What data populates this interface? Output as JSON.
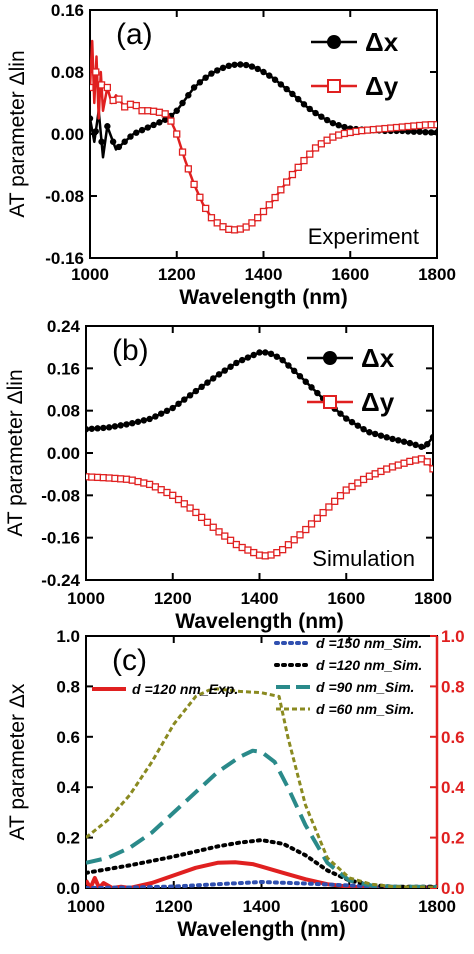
{
  "chart_data": [
    {
      "id": "a",
      "type": "line",
      "panel_label": "(a)",
      "annotation": "Experiment",
      "xlabel": "Wavelength (nm)",
      "ylabel": "AT parameter Δlin",
      "xlim": [
        1000,
        1800
      ],
      "ylim": [
        -0.16,
        0.16
      ],
      "xticks": [
        1000,
        1200,
        1400,
        1600,
        1800
      ],
      "yticks": [
        -0.16,
        -0.08,
        0.0,
        0.08,
        0.16
      ],
      "ytick_labels": [
        "-0.16",
        "-0.08",
        "0.00",
        "0.08",
        "0.16"
      ],
      "legend": "top-right",
      "series": [
        {
          "name": "Δx",
          "color": "#000000",
          "marker": "circle",
          "x": [
            1000,
            1010,
            1020,
            1030,
            1040,
            1060,
            1080,
            1100,
            1120,
            1140,
            1160,
            1180,
            1200,
            1220,
            1240,
            1260,
            1280,
            1300,
            1320,
            1340,
            1360,
            1380,
            1400,
            1420,
            1440,
            1460,
            1480,
            1500,
            1520,
            1540,
            1560,
            1580,
            1600,
            1620,
            1640,
            1660,
            1680,
            1700,
            1720,
            1740,
            1760,
            1780,
            1800
          ],
          "y": [
            0.02,
            -0.01,
            0.03,
            -0.03,
            0.01,
            -0.02,
            -0.01,
            0.0,
            0.005,
            0.01,
            0.015,
            0.02,
            0.03,
            0.045,
            0.06,
            0.07,
            0.078,
            0.084,
            0.088,
            0.09,
            0.089,
            0.086,
            0.08,
            0.073,
            0.064,
            0.055,
            0.045,
            0.035,
            0.027,
            0.02,
            0.014,
            0.01,
            0.007,
            0.006,
            0.005,
            0.005,
            0.004,
            0.004,
            0.004,
            0.003,
            0.003,
            0.002,
            0.002
          ]
        },
        {
          "name": "Δy",
          "color": "#e02020",
          "marker": "square",
          "x": [
            1000,
            1005,
            1010,
            1015,
            1020,
            1025,
            1030,
            1040,
            1050,
            1060,
            1080,
            1100,
            1120,
            1140,
            1160,
            1180,
            1200,
            1220,
            1240,
            1260,
            1280,
            1300,
            1320,
            1340,
            1360,
            1380,
            1400,
            1420,
            1440,
            1460,
            1480,
            1500,
            1520,
            1540,
            1560,
            1580,
            1600,
            1620,
            1640,
            1660,
            1680,
            1700,
            1720,
            1740,
            1760,
            1780,
            1800
          ],
          "y": [
            0.06,
            0.12,
            0.04,
            0.1,
            0.02,
            0.08,
            0.03,
            0.06,
            0.04,
            0.05,
            0.035,
            0.04,
            0.03,
            0.03,
            0.028,
            0.025,
            0.0,
            -0.035,
            -0.065,
            -0.09,
            -0.108,
            -0.118,
            -0.123,
            -0.124,
            -0.12,
            -0.112,
            -0.1,
            -0.087,
            -0.072,
            -0.057,
            -0.043,
            -0.03,
            -0.018,
            -0.01,
            -0.004,
            0.0,
            0.002,
            0.004,
            0.005,
            0.006,
            0.007,
            0.008,
            0.009,
            0.01,
            0.011,
            0.012,
            0.012
          ]
        }
      ]
    },
    {
      "id": "b",
      "type": "line",
      "panel_label": "(b)",
      "annotation": "Simulation",
      "xlabel": "Wavelength (nm)",
      "ylabel": "AT parameter Δlin",
      "xlim": [
        1000,
        1800
      ],
      "ylim": [
        -0.24,
        0.24
      ],
      "xticks": [
        1000,
        1200,
        1400,
        1600,
        1800
      ],
      "yticks": [
        -0.24,
        -0.16,
        -0.08,
        0.0,
        0.08,
        0.16,
        0.24
      ],
      "ytick_labels": [
        "-0.24",
        "-0.16",
        "-0.08",
        "0.00",
        "0.08",
        "0.16",
        "0.24"
      ],
      "legend": "top-right",
      "series": [
        {
          "name": "Δx",
          "color": "#000000",
          "marker": "circle",
          "x": [
            1000,
            1050,
            1100,
            1150,
            1200,
            1250,
            1300,
            1350,
            1400,
            1420,
            1450,
            1500,
            1550,
            1600,
            1650,
            1700,
            1750,
            1780,
            1800
          ],
          "y": [
            0.045,
            0.048,
            0.055,
            0.065,
            0.085,
            0.115,
            0.145,
            0.172,
            0.19,
            0.19,
            0.178,
            0.14,
            0.1,
            0.065,
            0.04,
            0.028,
            0.018,
            0.01,
            0.03
          ]
        },
        {
          "name": "Δy",
          "color": "#e02020",
          "marker": "square",
          "x": [
            1000,
            1050,
            1100,
            1150,
            1200,
            1250,
            1300,
            1350,
            1400,
            1420,
            1450,
            1500,
            1550,
            1600,
            1650,
            1700,
            1750,
            1780,
            1800
          ],
          "y": [
            -0.045,
            -0.047,
            -0.05,
            -0.06,
            -0.08,
            -0.11,
            -0.145,
            -0.175,
            -0.193,
            -0.195,
            -0.185,
            -0.15,
            -0.11,
            -0.07,
            -0.045,
            -0.028,
            -0.015,
            -0.01,
            -0.03
          ]
        }
      ]
    },
    {
      "id": "c",
      "type": "line",
      "panel_label": "(c)",
      "xlabel": "Wavelength (nm)",
      "ylabel": "AT parameter Δx",
      "xlim": [
        1000,
        1800
      ],
      "ylim": [
        0.0,
        1.0
      ],
      "y2lim": [
        0.0,
        1.0
      ],
      "xticks": [
        1000,
        1200,
        1400,
        1600,
        1800
      ],
      "yticks": [
        0.0,
        0.2,
        0.4,
        0.6,
        0.8,
        1.0
      ],
      "ytick_labels": [
        "0.0",
        "0.2",
        "0.4",
        "0.6",
        "0.8",
        "1.0"
      ],
      "legend": "top",
      "series": [
        {
          "name": "d =120 nm_Exp.",
          "color": "#e02020",
          "style": "solid",
          "x": [
            1000,
            1010,
            1020,
            1030,
            1040,
            1060,
            1080,
            1100,
            1150,
            1200,
            1250,
            1300,
            1340,
            1380,
            1400,
            1450,
            1500,
            1550,
            1600,
            1650,
            1700,
            1750,
            1800
          ],
          "y": [
            0.03,
            0.0,
            0.04,
            0.0,
            0.02,
            0.0,
            0.005,
            0.0,
            0.02,
            0.05,
            0.08,
            0.1,
            0.102,
            0.095,
            0.085,
            0.06,
            0.035,
            0.015,
            0.005,
            0.002,
            0.002,
            0.002,
            0.003
          ]
        },
        {
          "name": "d =150 nm_Sim.",
          "color": "#3050b0",
          "style": "dotted",
          "x": [
            1000,
            1100,
            1200,
            1300,
            1400,
            1500,
            1600,
            1700,
            1800
          ],
          "y": [
            0.0,
            0.002,
            0.006,
            0.015,
            0.024,
            0.018,
            0.01,
            0.003,
            0.005
          ]
        },
        {
          "name": "d =120 nm_Sim.",
          "color": "#000000",
          "style": "dotted",
          "x": [
            1000,
            1100,
            1200,
            1250,
            1300,
            1350,
            1400,
            1450,
            1500,
            1550,
            1600,
            1650,
            1700,
            1800
          ],
          "y": [
            0.06,
            0.09,
            0.125,
            0.145,
            0.165,
            0.18,
            0.19,
            0.175,
            0.13,
            0.07,
            0.03,
            0.012,
            0.005,
            0.005
          ]
        },
        {
          "name": "d =90 nm_Sim.",
          "color": "#2a8a8a",
          "style": "dashed",
          "x": [
            1000,
            1050,
            1100,
            1150,
            1200,
            1250,
            1300,
            1350,
            1380,
            1400,
            1430,
            1460,
            1500,
            1550,
            1600,
            1650,
            1700,
            1800
          ],
          "y": [
            0.1,
            0.12,
            0.16,
            0.22,
            0.3,
            0.38,
            0.46,
            0.52,
            0.545,
            0.54,
            0.5,
            0.4,
            0.25,
            0.1,
            0.03,
            0.01,
            0.005,
            0.004
          ]
        },
        {
          "name": "d =60 nm_Sim.",
          "color": "#8a8a20",
          "style": "short-dash",
          "x": [
            1000,
            1050,
            1100,
            1150,
            1200,
            1250,
            1280,
            1300,
            1350,
            1400,
            1440,
            1460,
            1500,
            1550,
            1600,
            1650,
            1700,
            1800
          ],
          "y": [
            0.2,
            0.27,
            0.37,
            0.5,
            0.65,
            0.76,
            0.785,
            0.79,
            0.78,
            0.775,
            0.76,
            0.6,
            0.33,
            0.12,
            0.04,
            0.015,
            0.005,
            0.003
          ]
        }
      ]
    }
  ]
}
